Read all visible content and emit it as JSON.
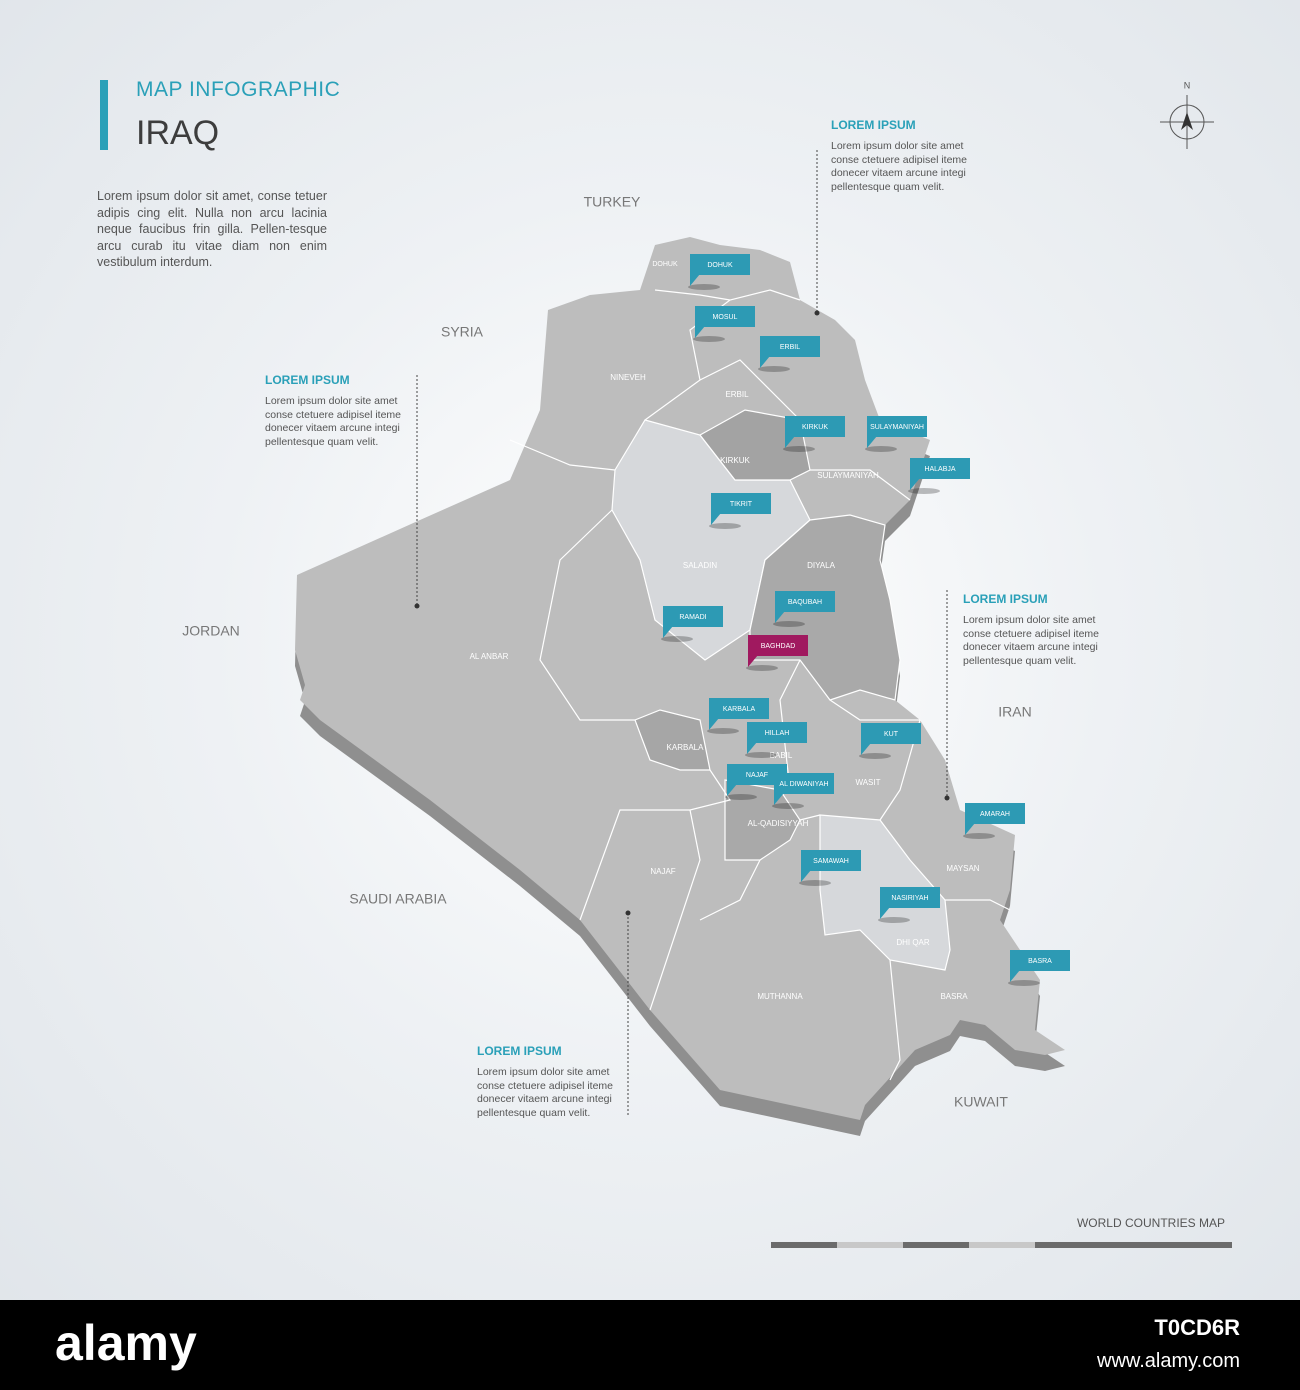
{
  "header": {
    "subtitle": "MAP INFOGRAPHIC",
    "title": "IRAQ",
    "description": "Lorem ipsum dolor sit amet, conse tetuer adipis cing elit. Nulla non arcu lacinia neque faucibus frin gilla. Pellen-tesque arcu curab itu vitae diam non enim vestibulum interdum."
  },
  "neighbors": [
    "TURKEY",
    "SYRIA",
    "JORDAN",
    "SAUDI ARABIA",
    "KUWAIT",
    "IRAN"
  ],
  "regions": [
    "DOHUK",
    "NINEVEH",
    "ERBIL",
    "KIRKUK",
    "SULAYMANIYAH",
    "SALADIN",
    "DIYALA",
    "AL ANBAR",
    "KARBALA",
    "BABIL",
    "WASIT",
    "AL-QADISIYYAH",
    "NAJAF",
    "MUTHANNA",
    "DHI QAR",
    "MAYSAN",
    "BASRA"
  ],
  "cities": [
    "DOHUK",
    "MOSUL",
    "ERBIL",
    "KIRKUK",
    "SULAYMANIYAH",
    "HALABJA",
    "TIKRIT",
    "BAQUBAH",
    "RAMADI",
    "BAGHDAD",
    "KARBALA",
    "HILLAH",
    "KUT",
    "NAJAF",
    "AL DIWANIYAH",
    "AMARAH",
    "SAMAWAH",
    "NASIRIYAH",
    "BASRA"
  ],
  "callouts": [
    {
      "heading": "LOREM IPSUM",
      "text": "Lorem ipsum dolor site amet conse ctetuere adipisel iteme donecer vitaem arcune integi pellentesque quam velit."
    },
    {
      "heading": "LOREM IPSUM",
      "text": "Lorem ipsum dolor site amet conse ctetuere adipisel iteme donecer vitaem arcune integi pellentesque quam velit."
    },
    {
      "heading": "LOREM IPSUM",
      "text": "Lorem ipsum dolor site amet conse ctetuere adipisel iteme donecer vitaem arcune integi pellentesque quam velit."
    },
    {
      "heading": "LOREM IPSUM",
      "text": "Lorem ipsum dolor site amet conse ctetuere adipisel iteme donecer vitaem arcune integi pellentesque quam velit."
    }
  ],
  "compass": "N",
  "footer_label": "WORLD COUNTRIES MAP",
  "banner": {
    "brand": "alamy",
    "image_id": "T0CD6R",
    "site": "www.alamy.com"
  }
}
